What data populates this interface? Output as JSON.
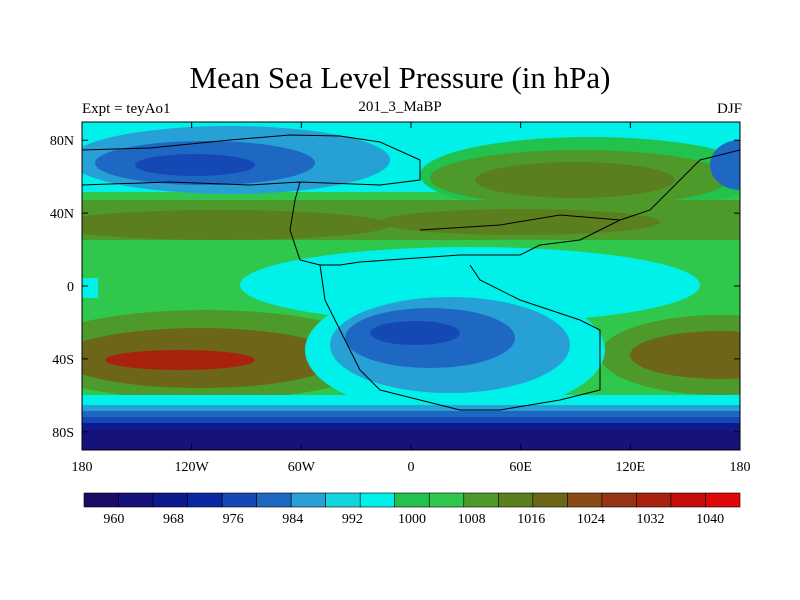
{
  "title": "Mean Sea Level Pressure (in hPa)",
  "subtitle_left": "Expt = teyAo1",
  "subtitle_center": "201_3_MaBP",
  "subtitle_right": "DJF",
  "axes": {
    "x_ticks": [
      {
        "lon": -180,
        "label": "180"
      },
      {
        "lon": -120,
        "label": "120W"
      },
      {
        "lon": -60,
        "label": "60W"
      },
      {
        "lon": 0,
        "label": "0"
      },
      {
        "lon": 60,
        "label": "60E"
      },
      {
        "lon": 120,
        "label": "120E"
      },
      {
        "lon": 180,
        "label": "180"
      }
    ],
    "y_ticks": [
      {
        "lat": 80,
        "label": "80N"
      },
      {
        "lat": 40,
        "label": "40N"
      },
      {
        "lat": 0,
        "label": "0"
      },
      {
        "lat": -40,
        "label": "40S"
      },
      {
        "lat": -80,
        "label": "80S"
      }
    ],
    "lon_range": [
      -180,
      180
    ],
    "lat_range": [
      -90,
      90
    ]
  },
  "colorbar": {
    "colors": [
      "#1b0b66",
      "#16127c",
      "#0d198f",
      "#0b28a3",
      "#1448b4",
      "#1e68c4",
      "#27a0d6",
      "#11d6e0",
      "#00f0ea",
      "#22c24e",
      "#2fc74c",
      "#4d9a2b",
      "#5b7f1f",
      "#6d6618",
      "#8a4a16",
      "#963514",
      "#a8220e",
      "#c40e0a",
      "#e00808"
    ],
    "labels": [
      {
        "edge": 1,
        "label": "960"
      },
      {
        "edge": 3,
        "label": "968"
      },
      {
        "edge": 5,
        "label": "976"
      },
      {
        "edge": 7,
        "label": "984"
      },
      {
        "edge": 9,
        "label": "992"
      },
      {
        "edge": 11,
        "label": "1000"
      },
      {
        "edge": 13,
        "label": "1008"
      },
      {
        "edge": 15,
        "label": "1016"
      },
      {
        "edge": 17,
        "label": "1024"
      },
      {
        "edge": 19,
        "label": "1032"
      },
      {
        "edge": 21,
        "label": "1040"
      }
    ]
  },
  "chart_data": {
    "type": "heatmap",
    "title": "Mean Sea Level Pressure (in hPa)",
    "units": "hPa",
    "variable": "Mean Sea Level Pressure",
    "experiment": "teyAo1",
    "period": "201_3_MaBP",
    "season": "DJF",
    "projection": "cylindrical equidistant",
    "xlim": [
      -180,
      180
    ],
    "ylim": [
      -90,
      90
    ],
    "colorbar_levels": [
      960,
      964,
      968,
      972,
      976,
      980,
      984,
      988,
      992,
      996,
      1000,
      1004,
      1008,
      1012,
      1016,
      1020,
      1024,
      1028,
      1032,
      1036,
      1040
    ],
    "bands": [
      {
        "lat_range": [
          66,
          90
        ],
        "mean_hPa": 1004,
        "note": "cyan polar ring with green/olive high over northeast"
      },
      {
        "lat_range": [
          50,
          72
        ],
        "mean_hPa": 990,
        "note": "blue low over northwest ocean"
      },
      {
        "lat_range": [
          20,
          45
        ],
        "mean_hPa": 1018,
        "note": "olive subtropical high belt"
      },
      {
        "lat_range": [
          -20,
          15
        ],
        "mean_hPa": 1008,
        "note": "green tropics, cyan low over eastern continent"
      },
      {
        "lat_range": [
          -60,
          -20
        ],
        "mean_hPa": 1020,
        "note": "subtropical highs peaking ~1034 near 120W"
      },
      {
        "lat_range": [
          -60,
          -20
        ],
        "mean_hPa": 976,
        "note": "deep continental low near 0-40E"
      },
      {
        "lat_range": [
          -90,
          -60
        ],
        "mean_hPa": 964,
        "note": "deep polar low ring"
      }
    ]
  }
}
